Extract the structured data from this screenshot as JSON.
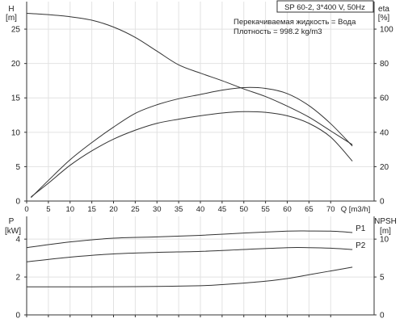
{
  "colors": {
    "background": "#ffffff",
    "axis": "#333333",
    "grid": "#e2e2e2",
    "curve": "#333333",
    "text": "#222222"
  },
  "chart_data": [
    {
      "type": "line",
      "grid": true,
      "title": "SP 60-2, 3*400 V, 50Hz",
      "annotations": [
        "Перекачиваемая жидкость = Вода",
        "Плотность = 998.2 kg/m3"
      ],
      "xlabel": "Q [m3/h]",
      "xlim": [
        0,
        80
      ],
      "x_ticks": [
        0,
        5,
        10,
        15,
        20,
        25,
        30,
        35,
        40,
        45,
        50,
        55,
        60,
        65,
        70
      ],
      "left_axis": {
        "label_top": "H",
        "label_bottom": "[m]",
        "lim": [
          0,
          29
        ],
        "ticks": [
          0,
          5,
          10,
          15,
          20,
          25
        ]
      },
      "right_axis": {
        "label_top": "eta",
        "label_bottom": "[%]",
        "lim": [
          0,
          116
        ],
        "ticks": [
          0,
          20,
          40,
          60,
          80,
          100
        ]
      },
      "series": [
        {
          "axis": "left",
          "x": [
            0,
            5,
            10,
            15,
            20,
            25,
            30,
            35,
            40,
            45,
            50,
            55,
            60,
            65,
            70,
            75
          ],
          "values": [
            27.3,
            27.1,
            26.8,
            26.3,
            25.3,
            23.8,
            21.8,
            19.8,
            18.6,
            17.5,
            16.3,
            15.2,
            13.8,
            12.2,
            10.2,
            8.2
          ]
        },
        {
          "axis": "right",
          "x": [
            1,
            5,
            10,
            15,
            20,
            25,
            30,
            35,
            40,
            45,
            50,
            55,
            60,
            65,
            70,
            75
          ],
          "values": [
            2,
            12,
            24,
            34,
            43,
            51,
            56,
            59.5,
            62,
            64.5,
            66,
            65.5,
            62.5,
            55.5,
            45,
            32
          ]
        },
        {
          "axis": "left",
          "x": [
            1,
            5,
            10,
            15,
            20,
            25,
            30,
            35,
            40,
            45,
            50,
            55,
            60,
            65,
            70,
            75
          ],
          "values": [
            0.6,
            2.6,
            5.2,
            7.3,
            9,
            10.3,
            11.3,
            11.9,
            12.4,
            12.8,
            13,
            12.9,
            12.4,
            11.3,
            9.3,
            5.8
          ]
        }
      ]
    },
    {
      "type": "line",
      "grid": true,
      "xlim": [
        0,
        80
      ],
      "x_ticks": [
        0,
        5,
        10,
        15,
        20,
        25,
        30,
        35,
        40,
        45,
        50,
        55,
        60,
        65,
        70
      ],
      "left_axis": {
        "label_top": "P",
        "label_bottom": "[kW]",
        "lim": [
          0,
          5.2
        ],
        "ticks": [
          0,
          2,
          4
        ]
      },
      "right_axis": {
        "label_top": "NPSH",
        "label_bottom": "[m]",
        "lim": [
          0,
          13
        ],
        "ticks": [
          0,
          5,
          10
        ]
      },
      "series": [
        {
          "name": "P1",
          "axis": "left",
          "x": [
            0,
            10,
            20,
            30,
            40,
            50,
            60,
            65,
            70,
            75
          ],
          "values": [
            3.55,
            3.85,
            4.05,
            4.12,
            4.2,
            4.32,
            4.42,
            4.43,
            4.42,
            4.35
          ]
        },
        {
          "name": "P2",
          "axis": "left",
          "x": [
            0,
            10,
            20,
            30,
            40,
            50,
            60,
            65,
            70,
            75
          ],
          "values": [
            2.8,
            3.05,
            3.22,
            3.3,
            3.35,
            3.45,
            3.55,
            3.55,
            3.52,
            3.45
          ]
        },
        {
          "axis": "right",
          "x": [
            0,
            10,
            20,
            30,
            40,
            45,
            50,
            55,
            60,
            65,
            70,
            75
          ],
          "values": [
            3.7,
            3.7,
            3.72,
            3.75,
            3.85,
            4,
            4.2,
            4.45,
            4.8,
            5.3,
            5.8,
            6.3
          ]
        }
      ]
    }
  ]
}
